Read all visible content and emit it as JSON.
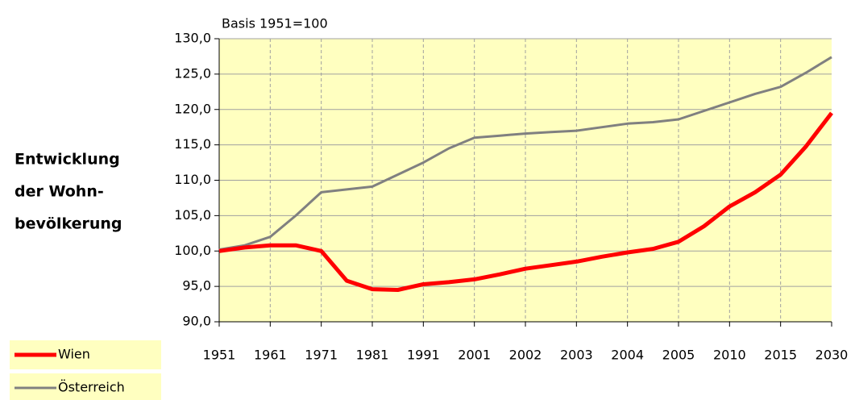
{
  "chart_data": {
    "type": "line",
    "subtitle": "Basis 1951=100",
    "side_title": [
      "Entwicklung",
      "der Wohn-",
      "bevölkerung"
    ],
    "categories": [
      "1951",
      null,
      "1961",
      null,
      "1971",
      null,
      "1981",
      null,
      "1991",
      null,
      "2001",
      null,
      "2002",
      null,
      "2003",
      null,
      "2004",
      null,
      "2005",
      null,
      "2010",
      null,
      "2015",
      null,
      "2030"
    ],
    "series": [
      {
        "name": "Wien",
        "color": "#ff0000",
        "values": [
          100.0,
          100.5,
          100.8,
          100.8,
          100.0,
          95.8,
          94.6,
          94.5,
          95.3,
          95.6,
          96.0,
          96.7,
          97.5,
          98.0,
          98.5,
          99.2,
          99.8,
          100.3,
          101.3,
          103.5,
          106.3,
          108.3,
          110.8,
          114.8,
          119.5
        ]
      },
      {
        "name": "Österreich",
        "color": "#808080",
        "values": [
          100.2,
          100.8,
          102.0,
          105.0,
          108.3,
          108.7,
          109.1,
          110.8,
          112.5,
          114.5,
          116.0,
          116.3,
          116.6,
          116.8,
          117.0,
          117.5,
          118.0,
          118.2,
          118.6,
          119.8,
          121.0,
          122.2,
          123.2,
          125.2,
          127.4
        ]
      }
    ],
    "ylim": [
      90,
      130
    ],
    "yticks": [
      {
        "value": 90,
        "label": "90,0"
      },
      {
        "value": 95,
        "label": "95,0"
      },
      {
        "value": 100,
        "label": "100,0"
      },
      {
        "value": 105,
        "label": "105,0"
      },
      {
        "value": 110,
        "label": "110,0"
      },
      {
        "value": 115,
        "label": "115,0"
      },
      {
        "value": 120,
        "label": "120,0"
      },
      {
        "value": 125,
        "label": "125,0"
      },
      {
        "value": 130,
        "label": "130,0"
      }
    ],
    "grid": true,
    "background": "#ffffc0"
  }
}
